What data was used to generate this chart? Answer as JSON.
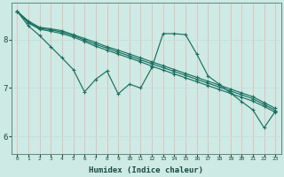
{
  "xlabel": "Humidex (Indice chaleur)",
  "ylabel": "",
  "background_color": "#ceeae4",
  "line_color": "#1a7060",
  "grid_color_v": "#c8ddd8",
  "grid_color_h": "#e8b8b8",
  "xlim": [
    -0.5,
    23.5
  ],
  "ylim": [
    5.65,
    8.75
  ],
  "yticks": [
    6,
    7,
    8
  ],
  "xticks": [
    0,
    1,
    2,
    3,
    4,
    5,
    6,
    7,
    8,
    9,
    10,
    11,
    12,
    13,
    14,
    15,
    16,
    17,
    18,
    19,
    20,
    21,
    22,
    23
  ],
  "series": [
    [
      8.58,
      8.38,
      8.25,
      8.22,
      8.18,
      8.1,
      8.02,
      7.94,
      7.85,
      7.78,
      7.7,
      7.62,
      7.54,
      7.46,
      7.38,
      7.3,
      7.22,
      7.14,
      7.06,
      6.98,
      6.9,
      6.82,
      6.7,
      6.58
    ],
    [
      8.58,
      8.36,
      8.23,
      8.2,
      8.15,
      8.08,
      7.99,
      7.9,
      7.82,
      7.74,
      7.66,
      7.58,
      7.5,
      7.42,
      7.34,
      7.26,
      7.18,
      7.1,
      7.02,
      6.94,
      6.86,
      6.78,
      6.66,
      6.54
    ],
    [
      8.58,
      8.34,
      8.21,
      8.17,
      8.12,
      8.05,
      7.96,
      7.86,
      7.78,
      7.7,
      7.62,
      7.54,
      7.45,
      7.37,
      7.29,
      7.21,
      7.13,
      7.05,
      6.97,
      6.89,
      6.81,
      6.73,
      6.62,
      6.5
    ],
    [
      8.58,
      8.28,
      8.08,
      7.85,
      7.62,
      7.38,
      6.92,
      7.18,
      7.35,
      6.88,
      7.08,
      7.0,
      7.42,
      8.12,
      8.12,
      8.1,
      7.7,
      7.25,
      7.08,
      6.9,
      6.72,
      6.55,
      6.18,
      6.52
    ]
  ]
}
